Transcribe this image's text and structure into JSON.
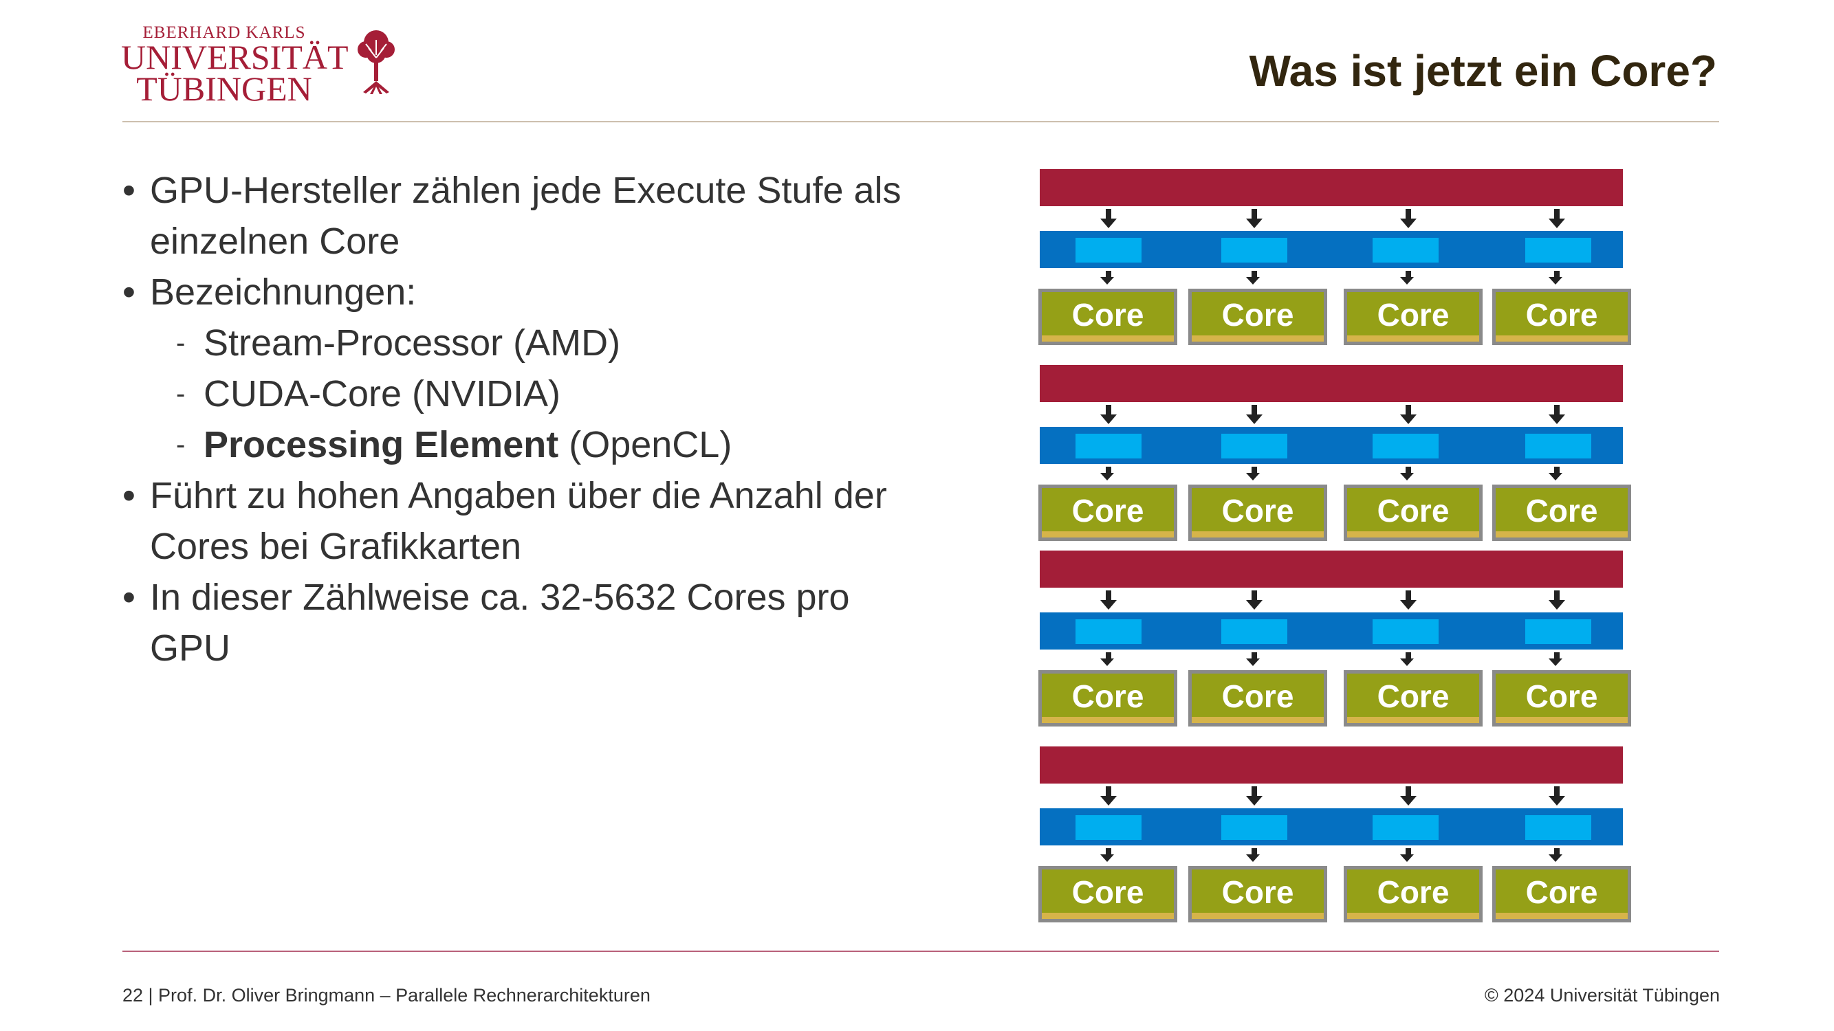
{
  "header": {
    "logo": {
      "line1": "EBERHARD KARLS",
      "line2": "UNIVERSITÄT",
      "line3": "TÜBINGEN"
    },
    "title": "Was ist jetzt ein Core?"
  },
  "bullets": [
    {
      "level": 1,
      "text": "GPU-Hersteller zählen jede Execute Stufe als einzelnen Core"
    },
    {
      "level": 1,
      "text": "Bezeichnungen:"
    },
    {
      "level": 2,
      "text": "Stream-Processor (AMD)"
    },
    {
      "level": 2,
      "text": "CUDA-Core (NVIDIA)"
    },
    {
      "level": 2,
      "bold": "Processing Element",
      "rest": " (OpenCL)"
    },
    {
      "level": 1,
      "text": "Führt zu hohen Angaben über die Anzahl der Cores bei Grafikkarten"
    },
    {
      "level": 1,
      "text": "In dieser Zählweise ca. 32-5632 Cores pro GPU"
    }
  ],
  "diagram": {
    "core_label": "Core",
    "groups": [
      {
        "cores": [
          "Core",
          "Core",
          "Core",
          "Core"
        ]
      },
      {
        "cores": [
          "Core",
          "Core",
          "Core",
          "Core"
        ]
      },
      {
        "cores": [
          "Core",
          "Core",
          "Core",
          "Core"
        ]
      },
      {
        "cores": [
          "Core",
          "Core",
          "Core",
          "Core"
        ]
      }
    ],
    "colors": {
      "fetch_bar": "#a31e38",
      "decode_bar": "#0570c1",
      "decode_cell": "#00aeef",
      "core_fill": "#95a017",
      "core_stripe": "#d6b44a",
      "core_border": "#8a8a8a"
    }
  },
  "footer": {
    "left": "22 | Prof. Dr. Oliver Bringmann – Parallele Rechnerarchitekturen",
    "right": "© 2024 Universität Tübingen"
  }
}
